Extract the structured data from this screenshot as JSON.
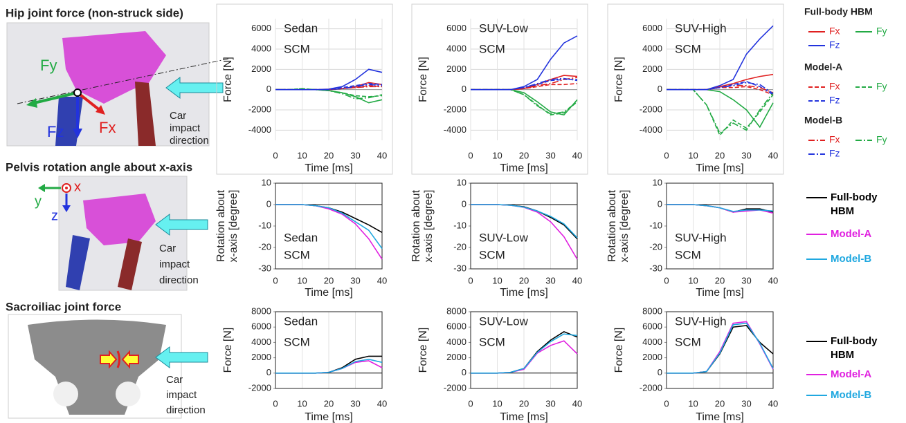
{
  "panels": [
    {
      "title": "Hip joint force (non-struck side)",
      "labels": [
        "Fy",
        "Fx",
        "Fz"
      ],
      "note": [
        "Car",
        "impact",
        "direction"
      ]
    },
    {
      "title": "Pelvis rotation angle about x-axis",
      "labels": [
        "y",
        "x",
        "z"
      ],
      "note": [
        "Car",
        "impact",
        "direction"
      ]
    },
    {
      "title": "Sacroiliac joint force",
      "note": [
        "Car",
        "impact",
        "direction"
      ]
    }
  ],
  "chart_data": [
    {
      "type": "line",
      "title": "Sedan",
      "subtitle": "SCM",
      "xlabel": "Time [ms]",
      "ylabel": "Force [N]",
      "x": [
        0,
        5,
        10,
        15,
        20,
        25,
        30,
        35,
        40
      ],
      "xlim": [
        0,
        40
      ],
      "xticks": [
        0,
        10,
        20,
        30,
        40
      ],
      "ylim": [
        -5000,
        7000
      ],
      "yticks": [
        -4000,
        -2000,
        0,
        2000,
        4000,
        6000
      ],
      "grid": true,
      "series": [
        {
          "name": "Fx",
          "group": "Full-body HBM",
          "color": "#e02020",
          "dash": "solid",
          "values": [
            0,
            0,
            0,
            0,
            0,
            100,
            300,
            700,
            500
          ]
        },
        {
          "name": "Fy",
          "group": "Full-body HBM",
          "color": "#22aa44",
          "dash": "solid",
          "values": [
            0,
            0,
            0,
            0,
            -100,
            -300,
            -700,
            -1300,
            -1000
          ]
        },
        {
          "name": "Fz",
          "group": "Full-body HBM",
          "color": "#2233dd",
          "dash": "solid",
          "values": [
            0,
            0,
            0,
            0,
            50,
            300,
            1000,
            2000,
            1700
          ]
        },
        {
          "name": "Fx",
          "group": "Model-A",
          "color": "#e02020",
          "dash": "dashed",
          "values": [
            0,
            0,
            0,
            0,
            0,
            100,
            200,
            400,
            300
          ]
        },
        {
          "name": "Fy",
          "group": "Model-A",
          "color": "#22aa44",
          "dash": "dashed",
          "values": [
            0,
            0,
            100,
            0,
            -100,
            -300,
            -600,
            -700,
            -600
          ]
        },
        {
          "name": "Fz",
          "group": "Model-A",
          "color": "#2233dd",
          "dash": "dashed",
          "values": [
            0,
            0,
            0,
            0,
            0,
            200,
            400,
            600,
            500
          ]
        },
        {
          "name": "Fx",
          "group": "Model-B",
          "color": "#e02020",
          "dash": "dashdot",
          "values": [
            0,
            0,
            0,
            0,
            0,
            100,
            200,
            300,
            300
          ]
        },
        {
          "name": "Fy",
          "group": "Model-B",
          "color": "#22aa44",
          "dash": "dashdot",
          "values": [
            0,
            0,
            100,
            0,
            -100,
            -400,
            -900,
            -800,
            -500
          ]
        },
        {
          "name": "Fz",
          "group": "Model-B",
          "color": "#2233dd",
          "dash": "dashdot",
          "values": [
            0,
            0,
            0,
            0,
            0,
            100,
            300,
            500,
            400
          ]
        }
      ]
    },
    {
      "type": "line",
      "title": "SUV-Low",
      "subtitle": "SCM",
      "xlabel": "Time [ms]",
      "ylabel": "Force [N]",
      "x": [
        0,
        5,
        10,
        15,
        20,
        25,
        30,
        35,
        40
      ],
      "xlim": [
        0,
        40
      ],
      "xticks": [
        0,
        10,
        20,
        30,
        40
      ],
      "ylim": [
        -5000,
        7000
      ],
      "yticks": [
        -4000,
        -2000,
        0,
        2000,
        4000,
        6000
      ],
      "grid": true,
      "series": [
        {
          "name": "Fx",
          "group": "Full-body HBM",
          "color": "#e02020",
          "dash": "solid",
          "values": [
            0,
            0,
            0,
            0,
            100,
            500,
            1000,
            1400,
            1300
          ]
        },
        {
          "name": "Fy",
          "group": "Full-body HBM",
          "color": "#22aa44",
          "dash": "solid",
          "values": [
            0,
            0,
            0,
            0,
            -300,
            -1200,
            -2200,
            -2500,
            -1000
          ]
        },
        {
          "name": "Fz",
          "group": "Full-body HBM",
          "color": "#2233dd",
          "dash": "solid",
          "values": [
            0,
            0,
            0,
            0,
            300,
            1000,
            3000,
            4600,
            5300
          ]
        },
        {
          "name": "Fx",
          "group": "Model-A",
          "color": "#e02020",
          "dash": "dashed",
          "values": [
            0,
            0,
            0,
            0,
            100,
            300,
            500,
            500,
            600
          ]
        },
        {
          "name": "Fy",
          "group": "Model-A",
          "color": "#22aa44",
          "dash": "dashed",
          "values": [
            0,
            0,
            0,
            0,
            -500,
            -1500,
            -2500,
            -2300,
            -1200
          ]
        },
        {
          "name": "Fz",
          "group": "Model-A",
          "color": "#2233dd",
          "dash": "dashed",
          "values": [
            0,
            0,
            0,
            0,
            200,
            500,
            900,
            1000,
            1000
          ]
        },
        {
          "name": "Fx",
          "group": "Model-B",
          "color": "#e02020",
          "dash": "dashdot",
          "values": [
            0,
            0,
            0,
            0,
            100,
            400,
            600,
            1000,
            1200
          ]
        },
        {
          "name": "Fy",
          "group": "Model-B",
          "color": "#22aa44",
          "dash": "dashdot",
          "values": [
            0,
            0,
            0,
            0,
            -500,
            -1600,
            -2400,
            -2200,
            -1200
          ]
        },
        {
          "name": "Fz",
          "group": "Model-B",
          "color": "#2233dd",
          "dash": "dashdot",
          "values": [
            0,
            0,
            0,
            0,
            200,
            600,
            1000,
            1100,
            900
          ]
        }
      ]
    },
    {
      "type": "line",
      "title": "SUV-High",
      "subtitle": "SCM",
      "xlabel": "Time [ms]",
      "ylabel": "Force [N]",
      "x": [
        0,
        5,
        10,
        15,
        20,
        25,
        30,
        35,
        40
      ],
      "xlim": [
        0,
        40
      ],
      "xticks": [
        0,
        10,
        20,
        30,
        40
      ],
      "ylim": [
        -5000,
        7000
      ],
      "yticks": [
        -4000,
        -2000,
        0,
        2000,
        4000,
        6000
      ],
      "grid": true,
      "series": [
        {
          "name": "Fx",
          "group": "Full-body HBM",
          "color": "#e02020",
          "dash": "solid",
          "values": [
            0,
            0,
            0,
            0,
            300,
            600,
            1000,
            1300,
            1500
          ]
        },
        {
          "name": "Fy",
          "group": "Full-body HBM",
          "color": "#22aa44",
          "dash": "solid",
          "values": [
            0,
            0,
            0,
            0,
            -200,
            -1000,
            -2000,
            -3700,
            -1300
          ]
        },
        {
          "name": "Fz",
          "group": "Full-body HBM",
          "color": "#2233dd",
          "dash": "solid",
          "values": [
            0,
            0,
            0,
            0,
            400,
            1000,
            3500,
            5000,
            6300
          ]
        },
        {
          "name": "Fx",
          "group": "Model-A",
          "color": "#e02020",
          "dash": "dashed",
          "values": [
            0,
            0,
            0,
            0,
            200,
            200,
            300,
            0,
            -500
          ]
        },
        {
          "name": "Fy",
          "group": "Model-A",
          "color": "#22aa44",
          "dash": "dashed",
          "values": [
            0,
            0,
            0,
            -1500,
            -4500,
            -3000,
            -3800,
            -2200,
            -500
          ]
        },
        {
          "name": "Fz",
          "group": "Model-A",
          "color": "#2233dd",
          "dash": "dashed",
          "values": [
            0,
            0,
            0,
            0,
            200,
            500,
            800,
            300,
            -500
          ]
        },
        {
          "name": "Fx",
          "group": "Model-B",
          "color": "#e02020",
          "dash": "dashdot",
          "values": [
            0,
            0,
            0,
            0,
            200,
            400,
            400,
            200,
            -300
          ]
        },
        {
          "name": "Fy",
          "group": "Model-B",
          "color": "#22aa44",
          "dash": "dashdot",
          "values": [
            0,
            0,
            0,
            -1500,
            -4300,
            -3300,
            -4000,
            -2000,
            -300
          ]
        },
        {
          "name": "Fz",
          "group": "Model-B",
          "color": "#2233dd",
          "dash": "dashdot",
          "values": [
            0,
            0,
            0,
            0,
            200,
            400,
            700,
            500,
            -400
          ]
        }
      ]
    },
    {
      "type": "line",
      "title": "Sedan",
      "subtitle": "SCM",
      "xlabel": "Time [ms]",
      "ylabel": [
        "Rotation about",
        "x-axis [degree]"
      ],
      "x": [
        0,
        5,
        10,
        15,
        20,
        25,
        30,
        35,
        40
      ],
      "xlim": [
        0,
        40
      ],
      "xticks": [
        0,
        10,
        20,
        30,
        40
      ],
      "ylim": [
        -30,
        10
      ],
      "yticks": [
        -30,
        -20,
        -10,
        0,
        10
      ],
      "grid": false,
      "series": [
        {
          "name": "Full-body HBM",
          "color": "#000000",
          "values": [
            0,
            0,
            0,
            -0.5,
            -1.5,
            -3.5,
            -6.5,
            -9.5,
            -13
          ]
        },
        {
          "name": "Model-A",
          "color": "#e020e0",
          "values": [
            0,
            0,
            0,
            -0.5,
            -2,
            -4.5,
            -9,
            -16,
            -25.5
          ]
        },
        {
          "name": "Model-B",
          "color": "#20a8e0",
          "values": [
            0,
            0,
            0,
            -0.5,
            -1.5,
            -4,
            -8,
            -12,
            -20.5
          ]
        }
      ]
    },
    {
      "type": "line",
      "title": "SUV-Low",
      "subtitle": "SCM",
      "xlabel": "Time [ms]",
      "ylabel": [
        "Rotation about",
        "x-axis [degree]"
      ],
      "x": [
        0,
        5,
        10,
        15,
        20,
        25,
        30,
        35,
        40
      ],
      "xlim": [
        0,
        40
      ],
      "xticks": [
        0,
        10,
        20,
        30,
        40
      ],
      "ylim": [
        -30,
        10
      ],
      "yticks": [
        -30,
        -20,
        -10,
        0,
        10
      ],
      "grid": false,
      "series": [
        {
          "name": "Full-body HBM",
          "color": "#000000",
          "values": [
            0,
            0,
            0,
            -0.3,
            -1,
            -3,
            -6,
            -9.5,
            -16
          ]
        },
        {
          "name": "Model-A",
          "color": "#e020e0",
          "values": [
            0,
            0,
            0,
            -0.3,
            -1.3,
            -3.5,
            -8,
            -15,
            -25.5
          ]
        },
        {
          "name": "Model-B",
          "color": "#20a8e0",
          "values": [
            0,
            0,
            0,
            -0.3,
            -1.2,
            -3,
            -5.5,
            -9,
            -15.5
          ]
        }
      ]
    },
    {
      "type": "line",
      "title": "SUV-High",
      "subtitle": "SCM",
      "xlabel": "Time [ms]",
      "ylabel": [
        "Rotation about",
        "x-axis [degree]"
      ],
      "x": [
        0,
        5,
        10,
        15,
        20,
        25,
        30,
        35,
        40
      ],
      "xlim": [
        0,
        40
      ],
      "xticks": [
        0,
        10,
        20,
        30,
        40
      ],
      "ylim": [
        -30,
        10
      ],
      "yticks": [
        -30,
        -20,
        -10,
        0,
        10
      ],
      "grid": false,
      "series": [
        {
          "name": "Full-body HBM",
          "color": "#000000",
          "values": [
            0,
            0,
            0,
            -0.5,
            -1.5,
            -3.5,
            -2,
            -2,
            -3.5
          ]
        },
        {
          "name": "Model-A",
          "color": "#e020e0",
          "values": [
            0,
            0,
            0,
            -0.5,
            -1.5,
            -3.5,
            -3,
            -2.5,
            -4
          ]
        },
        {
          "name": "Model-B",
          "color": "#20a8e0",
          "values": [
            0,
            0,
            0,
            -0.5,
            -1.5,
            -3.2,
            -2.5,
            -2.5,
            -3
          ]
        }
      ]
    },
    {
      "type": "line",
      "title": "Sedan",
      "subtitle": "SCM",
      "xlabel": "Time [ms]",
      "ylabel": "Force [N]",
      "x": [
        0,
        5,
        10,
        15,
        20,
        25,
        30,
        35,
        40
      ],
      "xlim": [
        0,
        40
      ],
      "xticks": [
        0,
        10,
        20,
        30,
        40
      ],
      "ylim": [
        -2000,
        8000
      ],
      "yticks": [
        -2000,
        0,
        2000,
        4000,
        6000,
        8000
      ],
      "grid": false,
      "series": [
        {
          "name": "Full-body HBM",
          "color": "#000000",
          "values": [
            0,
            0,
            0,
            0,
            100,
            700,
            1800,
            2200,
            2200
          ]
        },
        {
          "name": "Model-A",
          "color": "#e020e0",
          "values": [
            0,
            0,
            0,
            0,
            100,
            600,
            1400,
            1600,
            700
          ]
        },
        {
          "name": "Model-B",
          "color": "#20a8e0",
          "values": [
            0,
            0,
            0,
            0,
            100,
            600,
            1500,
            1800,
            1400
          ]
        }
      ]
    },
    {
      "type": "line",
      "title": "SUV-Low",
      "subtitle": "SCM",
      "xlabel": "Time [ms]",
      "ylabel": "Force [N]",
      "x": [
        0,
        5,
        10,
        15,
        20,
        25,
        30,
        35,
        40
      ],
      "xlim": [
        0,
        40
      ],
      "xticks": [
        0,
        10,
        20,
        30,
        40
      ],
      "ylim": [
        -2000,
        8000
      ],
      "yticks": [
        -2000,
        0,
        2000,
        4000,
        6000,
        8000
      ],
      "grid": false,
      "series": [
        {
          "name": "Full-body HBM",
          "color": "#000000",
          "values": [
            0,
            0,
            0,
            100,
            600,
            2800,
            4300,
            5400,
            4700
          ]
        },
        {
          "name": "Model-A",
          "color": "#e020e0",
          "values": [
            0,
            0,
            0,
            100,
            500,
            2600,
            3600,
            4200,
            2500
          ]
        },
        {
          "name": "Model-B",
          "color": "#20a8e0",
          "values": [
            0,
            0,
            0,
            100,
            600,
            2700,
            4100,
            5100,
            4900
          ]
        }
      ]
    },
    {
      "type": "line",
      "title": "SUV-High",
      "subtitle": "SCM",
      "xlabel": "Time [ms]",
      "ylabel": "Force [N]",
      "x": [
        0,
        5,
        10,
        15,
        20,
        25,
        30,
        35,
        40
      ],
      "xlim": [
        0,
        40
      ],
      "xticks": [
        0,
        10,
        20,
        30,
        40
      ],
      "ylim": [
        -2000,
        8000
      ],
      "yticks": [
        -2000,
        0,
        2000,
        4000,
        6000,
        8000
      ],
      "grid": false,
      "series": [
        {
          "name": "Full-body HBM",
          "color": "#000000",
          "values": [
            0,
            0,
            0,
            200,
            2500,
            6000,
            6200,
            4000,
            2500
          ]
        },
        {
          "name": "Model-A",
          "color": "#e020e0",
          "values": [
            0,
            0,
            0,
            200,
            2800,
            6500,
            6700,
            3800,
            500
          ]
        },
        {
          "name": "Model-B",
          "color": "#20a8e0",
          "values": [
            0,
            0,
            0,
            200,
            2600,
            6300,
            6500,
            3900,
            600
          ]
        }
      ]
    }
  ]
}
